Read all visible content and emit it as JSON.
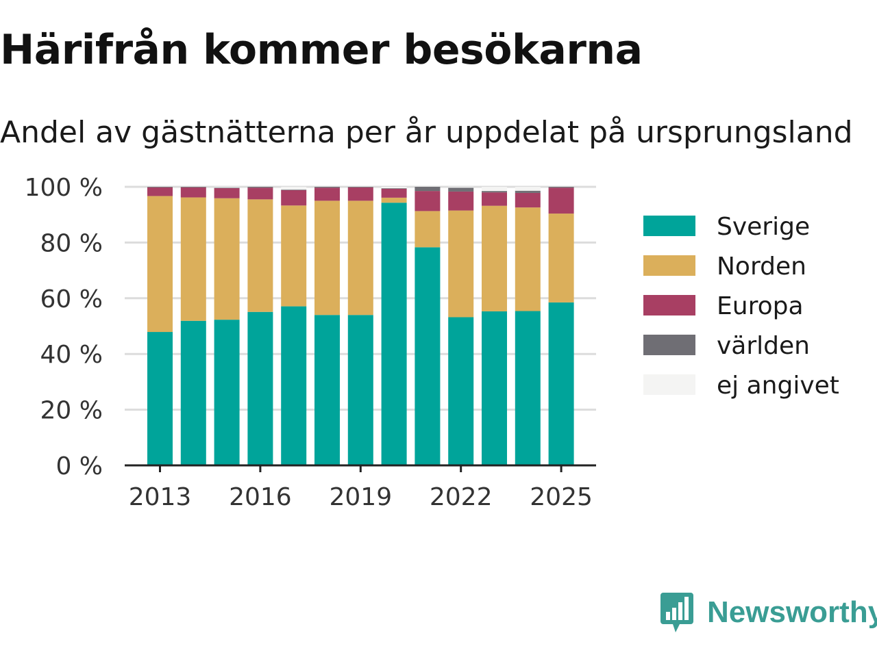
{
  "title": "Härifrån kommer besökarna",
  "subtitle": "Andel av gästnätterna per år uppdelat på ursprungsland",
  "brand": {
    "name": "Newsworthy",
    "color": "#3a9d94",
    "icon": "newsworthy-logo-icon"
  },
  "chart_data": {
    "type": "bar",
    "stacked": true,
    "x": [
      2013,
      2014,
      2015,
      2016,
      2017,
      2018,
      2019,
      2020,
      2021,
      2022,
      2023,
      2024,
      2025
    ],
    "x_tick_labels": [
      "2013",
      "2016",
      "2019",
      "2022",
      "2025"
    ],
    "y_ticks": [
      "0 %",
      "20 %",
      "40 %",
      "60 %",
      "80 %",
      "100 %"
    ],
    "ylim": [
      0,
      100
    ],
    "grid": true,
    "legend_position": "right",
    "series": [
      {
        "name": "Sverige",
        "color": "#00a49a",
        "values": [
          47.9,
          51.9,
          52.3,
          55.1,
          57.1,
          54.0,
          54.0,
          94.3,
          78.3,
          53.2,
          55.3,
          55.4,
          58.5
        ]
      },
      {
        "name": "Norden",
        "color": "#dbaf5b",
        "values": [
          48.8,
          44.3,
          43.6,
          40.4,
          36.2,
          41.0,
          41.0,
          1.8,
          13.0,
          38.3,
          37.9,
          37.2,
          31.9
        ]
      },
      {
        "name": "Europa",
        "color": "#a83f63",
        "values": [
          3.1,
          3.6,
          3.6,
          4.2,
          5.5,
          4.7,
          4.8,
          3.2,
          7.2,
          6.8,
          4.8,
          5.2,
          9.3
        ]
      },
      {
        "name": "världen",
        "color": "#6f6e74",
        "values": [
          0.2,
          0.2,
          0.2,
          0.3,
          0.2,
          0.3,
          0.2,
          0.2,
          1.5,
          1.4,
          0.5,
          0.8,
          0.3
        ]
      },
      {
        "name": "ej angivet",
        "color": "#f4f4f3",
        "values": [
          0.0,
          0.0,
          0.3,
          0.0,
          1.0,
          0.0,
          0.0,
          0.5,
          0.0,
          0.3,
          1.5,
          1.4,
          0.0
        ]
      }
    ]
  }
}
